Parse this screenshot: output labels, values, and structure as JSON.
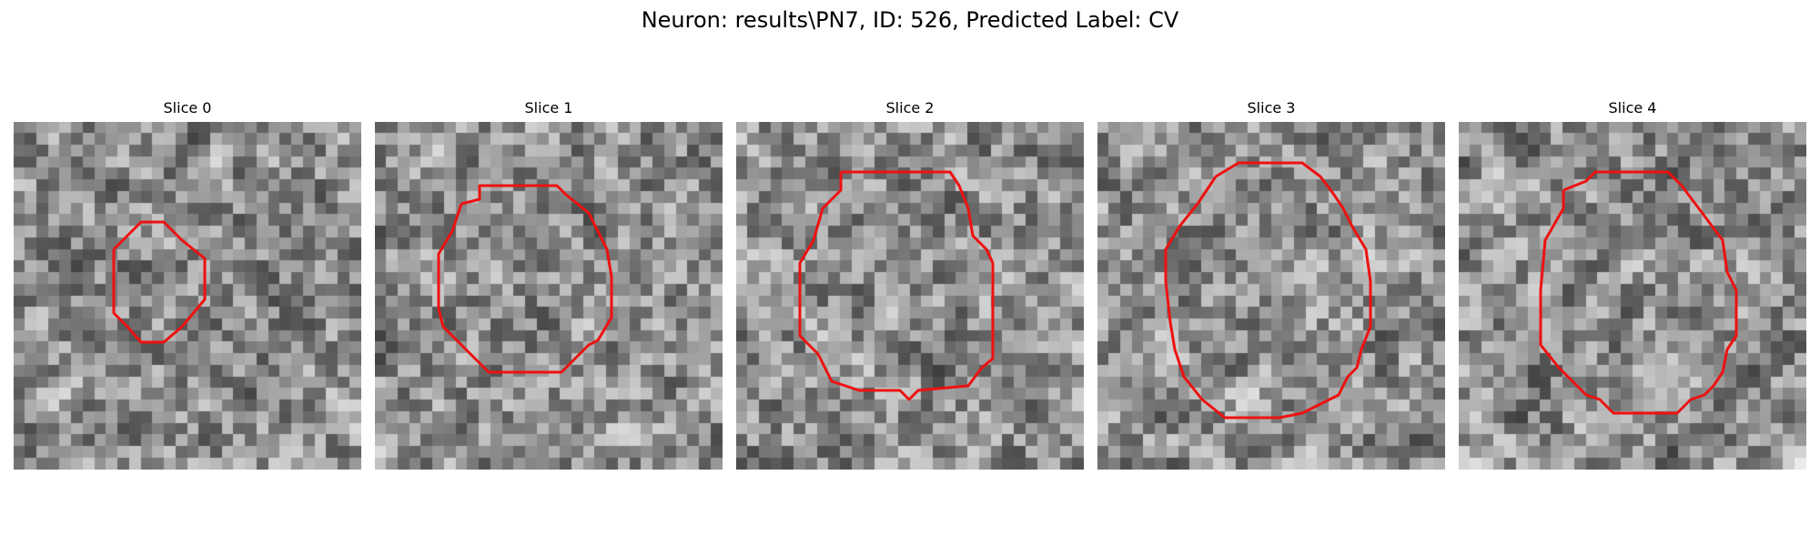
{
  "figure": {
    "title": "Neuron: results\\PN7, ID: 526, Predicted Label: CV",
    "contour_color": "#ee1111",
    "panels": [
      {
        "title": "Slice 0",
        "grid_size": 30,
        "seed": 11
      },
      {
        "title": "Slice 1",
        "grid_size": 30,
        "seed": 23
      },
      {
        "title": "Slice 2",
        "grid_size": 30,
        "seed": 37
      },
      {
        "title": "Slice 3",
        "grid_size": 30,
        "seed": 41
      },
      {
        "title": "Slice 4",
        "grid_size": 30,
        "seed": 59
      }
    ]
  }
}
